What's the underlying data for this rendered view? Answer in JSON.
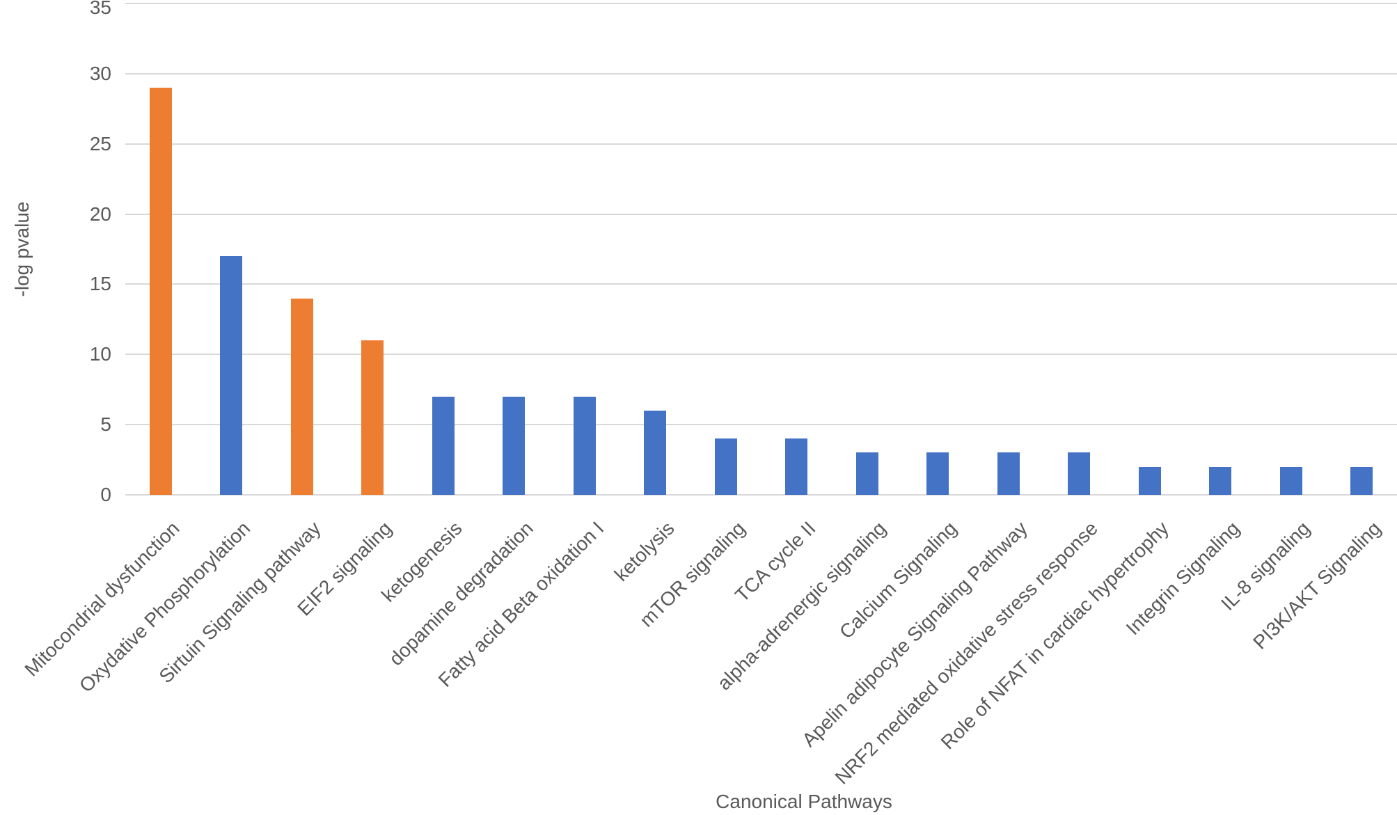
{
  "figure": {
    "background": "#ffffff"
  },
  "chart_data": {
    "type": "bar",
    "title": "",
    "xlabel": "Canonical Pathways",
    "ylabel": "-log pvalue",
    "ylim": [
      0,
      35
    ],
    "yticks": [
      0,
      5,
      10,
      15,
      20,
      25,
      30,
      35
    ],
    "grid": true,
    "legend_position": "none",
    "categories": [
      "Mitocondrial dysfunction",
      "Oxydative Phosphorylation",
      "Sirtuin Signaling pathway",
      "EIF2 signaling",
      "ketogenesis",
      "dopamine degradation",
      "Fatty acid Beta oxidation I",
      "ketolysis",
      "mTOR signaling",
      "TCA cycle II",
      "alpha-adrenergic signaling",
      "Calcium Signaling",
      "Apelin adipocyte Signaling Pathway",
      "NRF2 mediated oxidative stress response",
      "Role of NFAT in cardiac hypertrophy",
      "Integrin Signaling",
      "IL-8 signaling",
      "PI3K/AKT Signaling"
    ],
    "values": [
      29,
      17,
      14,
      11,
      7,
      7,
      7,
      6,
      4,
      4,
      3,
      3,
      3,
      3,
      2,
      2,
      2,
      2
    ],
    "bar_colors": [
      "orange",
      "blue",
      "orange",
      "orange",
      "blue",
      "blue",
      "blue",
      "blue",
      "blue",
      "blue",
      "blue",
      "blue",
      "blue",
      "blue",
      "blue",
      "blue",
      "blue",
      "blue"
    ],
    "palette": {
      "blue": "#4472C4",
      "orange": "#ED7D31"
    },
    "gridline_color": "#D9D9D9",
    "axis_line_color": "#D9D9D9",
    "text_color": "#595959"
  }
}
